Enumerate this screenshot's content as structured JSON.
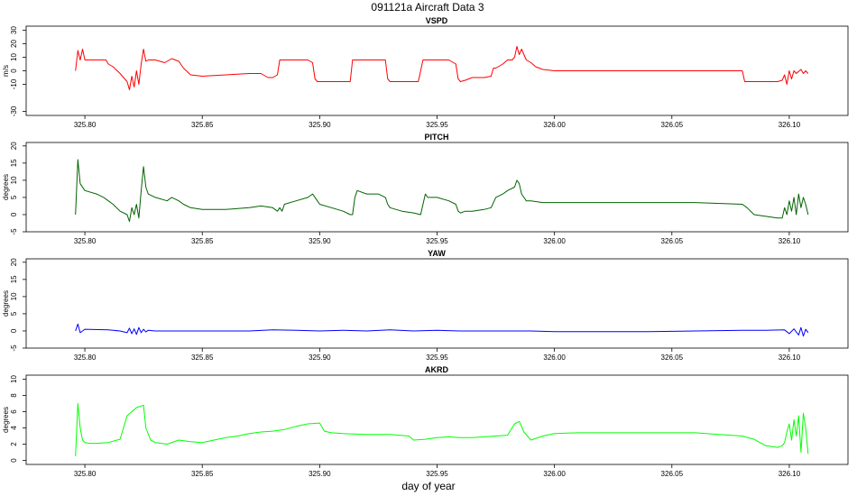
{
  "figure": {
    "title": "091121a   Aircraft Data 3",
    "xlabel": "day of year"
  },
  "chart_data": [
    {
      "type": "line",
      "title": "VSPD",
      "ylabel": "m/s",
      "color": "#ff0000",
      "xlim": [
        325.775,
        326.125
      ],
      "ylim": [
        -33,
        33
      ],
      "yticks": [
        -30,
        -10,
        0,
        10,
        20,
        30
      ],
      "xticks": [
        325.8,
        325.85,
        325.9,
        325.95,
        326.0,
        326.05,
        326.1
      ],
      "x_tick_labels": [
        "325.80",
        "325.85",
        "325.90",
        "325.95",
        "326.00",
        "326.05",
        "326.10"
      ],
      "x": [
        325.796,
        325.797,
        325.798,
        325.799,
        325.8,
        325.803,
        325.807,
        325.809,
        325.81,
        325.812,
        325.815,
        325.818,
        325.819,
        325.82,
        325.821,
        325.822,
        325.823,
        325.824,
        325.825,
        325.826,
        325.827,
        325.83,
        325.834,
        325.837,
        325.84,
        325.842,
        325.845,
        325.85,
        325.86,
        325.87,
        325.875,
        325.878,
        325.88,
        325.882,
        325.883,
        325.884,
        325.885,
        325.89,
        325.895,
        325.897,
        325.898,
        325.899,
        325.9,
        325.91,
        325.913,
        325.914,
        325.915,
        325.916,
        325.92,
        325.925,
        325.928,
        325.929,
        325.93,
        325.931,
        325.935,
        325.94,
        325.942,
        325.944,
        325.945,
        325.946,
        325.95,
        325.955,
        325.958,
        325.959,
        325.96,
        325.962,
        325.965,
        325.97,
        325.973,
        325.974,
        325.975,
        325.978,
        325.98,
        325.982,
        325.983,
        325.984,
        325.985,
        325.986,
        325.988,
        325.99,
        325.992,
        325.995,
        326.0,
        326.02,
        326.04,
        326.06,
        326.08,
        326.081,
        326.082,
        326.09,
        326.095,
        326.097,
        326.098,
        326.099,
        326.1,
        326.101,
        326.102,
        326.103,
        326.105,
        326.106,
        326.107,
        326.108
      ],
      "y": [
        0,
        15,
        8,
        16,
        8,
        8,
        8,
        8,
        5,
        3,
        -2,
        -8,
        -14,
        -4,
        -12,
        0,
        -10,
        5,
        16,
        7,
        8,
        8,
        6,
        9,
        7,
        2,
        -3,
        -4,
        -3,
        -2,
        -2,
        -5,
        -5,
        -3,
        8,
        8,
        8,
        8,
        8,
        6,
        -6,
        -8,
        -8,
        -8,
        -8,
        8,
        8,
        8,
        8,
        8,
        8,
        -6,
        -8,
        -8,
        -8,
        -8,
        -8,
        8,
        8,
        8,
        8,
        8,
        5,
        -6,
        -8,
        -7,
        -5,
        -5,
        -4,
        2,
        2,
        5,
        8,
        8,
        10,
        18,
        12,
        16,
        8,
        6,
        3,
        1,
        0,
        0,
        0,
        0,
        0,
        -8,
        -8,
        -8,
        -8,
        -7,
        -3,
        -10,
        0,
        -6,
        0,
        -2,
        1,
        -2,
        0,
        -2
      ]
    },
    {
      "type": "line",
      "title": "PITCH",
      "ylabel": "degrees",
      "color": "#006400",
      "xlim": [
        325.775,
        326.125
      ],
      "ylim": [
        -5,
        21
      ],
      "yticks": [
        -5,
        0,
        5,
        10,
        15,
        20
      ],
      "xticks": [
        325.8,
        325.85,
        325.9,
        325.95,
        326.0,
        326.05,
        326.1
      ],
      "x_tick_labels": [
        "325.80",
        "325.85",
        "325.90",
        "325.95",
        "326.00",
        "326.05",
        "326.10"
      ],
      "x": [
        325.796,
        325.797,
        325.798,
        325.8,
        325.805,
        325.808,
        325.81,
        325.812,
        325.815,
        325.818,
        325.819,
        325.82,
        325.821,
        325.822,
        325.823,
        325.824,
        325.825,
        325.826,
        325.827,
        325.83,
        325.835,
        325.837,
        325.84,
        325.842,
        325.845,
        325.85,
        325.86,
        325.87,
        325.875,
        325.88,
        325.882,
        325.883,
        325.884,
        325.885,
        325.89,
        325.895,
        325.897,
        325.898,
        325.899,
        325.9,
        325.905,
        325.91,
        325.913,
        325.914,
        325.915,
        325.916,
        325.92,
        325.925,
        325.928,
        325.929,
        325.93,
        325.935,
        325.94,
        325.943,
        325.944,
        325.945,
        325.946,
        325.95,
        325.955,
        325.958,
        325.959,
        325.96,
        325.962,
        325.965,
        325.97,
        325.973,
        325.975,
        325.978,
        325.98,
        325.983,
        325.984,
        325.985,
        325.986,
        325.987,
        325.988,
        325.99,
        325.995,
        326.0,
        326.02,
        326.04,
        326.06,
        326.08,
        326.082,
        326.085,
        326.09,
        326.095,
        326.097,
        326.098,
        326.099,
        326.1,
        326.101,
        326.102,
        326.103,
        326.104,
        326.105,
        326.106,
        326.107,
        326.108
      ],
      "y": [
        0,
        16,
        9,
        7,
        6,
        5,
        4,
        3,
        1,
        0,
        -2,
        2,
        0,
        3,
        -1,
        7,
        14,
        8,
        6,
        5,
        4,
        5,
        4,
        3,
        2,
        1.5,
        1.5,
        2,
        2.5,
        2,
        1,
        2,
        1,
        3,
        4,
        5,
        6,
        5,
        4,
        3,
        2,
        1,
        0,
        0,
        5,
        7,
        6,
        6,
        5,
        3,
        2,
        1,
        0.5,
        0,
        3,
        6,
        5,
        5,
        4,
        3,
        1,
        0.5,
        1,
        1,
        1.5,
        2,
        5,
        6,
        7,
        8,
        10,
        9,
        6,
        5,
        4,
        4,
        3.5,
        3.5,
        3.5,
        3.5,
        3.5,
        3,
        2,
        0,
        -0.5,
        -1,
        -1,
        2,
        0,
        4,
        1,
        5,
        0,
        6,
        2,
        5,
        3,
        0
      ]
    },
    {
      "type": "line",
      "title": "YAW",
      "ylabel": "degrees",
      "color": "#0000ff",
      "xlim": [
        325.775,
        326.125
      ],
      "ylim": [
        -5,
        21
      ],
      "yticks": [
        -5,
        0,
        5,
        10,
        15,
        20
      ],
      "xticks": [
        325.8,
        325.85,
        325.9,
        325.95,
        326.0,
        326.05,
        326.1
      ],
      "x_tick_labels": [
        "325.80",
        "325.85",
        "325.90",
        "325.95",
        "326.00",
        "326.05",
        "326.10"
      ],
      "x": [
        325.796,
        325.797,
        325.798,
        325.8,
        325.81,
        325.815,
        325.818,
        325.819,
        325.82,
        325.821,
        325.822,
        325.823,
        325.824,
        325.825,
        325.826,
        325.827,
        325.83,
        325.85,
        325.87,
        325.88,
        325.89,
        325.9,
        325.91,
        325.92,
        325.93,
        325.94,
        325.95,
        325.96,
        325.97,
        325.98,
        325.99,
        326.0,
        326.02,
        326.04,
        326.06,
        326.08,
        326.09,
        326.098,
        326.1,
        326.102,
        326.104,
        326.105,
        326.106,
        326.107,
        326.108
      ],
      "y": [
        0,
        2,
        -0.5,
        0.5,
        0.3,
        0,
        -0.5,
        0.8,
        -0.8,
        0.6,
        -1,
        1,
        -0.5,
        0.5,
        -0.3,
        0.2,
        0,
        0,
        0,
        0.3,
        0.2,
        0,
        0.2,
        0,
        0.3,
        0,
        0.2,
        0,
        0,
        0,
        0,
        -0.2,
        -0.2,
        -0.2,
        0,
        0.2,
        0.2,
        0.3,
        -0.8,
        0.6,
        -1.2,
        1,
        -1.5,
        0.5,
        -0.5
      ]
    },
    {
      "type": "line",
      "title": "AKRD",
      "ylabel": "degrees",
      "color": "#00ff00",
      "xlim": [
        325.775,
        326.125
      ],
      "ylim": [
        -0.5,
        10.5
      ],
      "yticks": [
        0,
        2,
        4,
        6,
        8,
        10
      ],
      "xticks": [
        325.8,
        325.85,
        325.9,
        325.95,
        326.0,
        326.05,
        326.1
      ],
      "x_tick_labels": [
        "325.80",
        "325.85",
        "325.90",
        "325.95",
        "326.00",
        "326.05",
        "326.10"
      ],
      "x": [
        325.796,
        325.797,
        325.798,
        325.799,
        325.8,
        325.802,
        325.805,
        325.81,
        325.815,
        325.818,
        325.82,
        325.822,
        325.825,
        325.826,
        325.828,
        325.83,
        325.835,
        325.84,
        325.845,
        325.85,
        325.855,
        325.86,
        325.865,
        325.87,
        325.875,
        325.88,
        325.885,
        325.89,
        325.895,
        325.9,
        325.902,
        325.905,
        325.91,
        325.92,
        325.93,
        325.938,
        325.94,
        325.945,
        325.95,
        325.955,
        325.96,
        325.965,
        325.97,
        325.975,
        325.98,
        325.983,
        325.985,
        325.987,
        325.99,
        325.995,
        326.0,
        326.01,
        326.02,
        326.04,
        326.06,
        326.07,
        326.08,
        326.085,
        326.09,
        326.095,
        326.097,
        326.098,
        326.099,
        326.1,
        326.101,
        326.102,
        326.103,
        326.104,
        326.105,
        326.106,
        326.107,
        326.108
      ],
      "y": [
        0.5,
        7,
        4,
        2.5,
        2.2,
        2.1,
        2.1,
        2.2,
        2.6,
        5.5,
        6,
        6.5,
        6.8,
        4,
        2.5,
        2.2,
        2.0,
        2.5,
        2.3,
        2.2,
        2.5,
        2.8,
        3.0,
        3.3,
        3.5,
        3.6,
        3.8,
        4.2,
        4.5,
        4.6,
        3.6,
        3.4,
        3.3,
        3.2,
        3.2,
        3.0,
        2.5,
        2.6,
        2.8,
        2.9,
        2.8,
        2.8,
        2.9,
        3.0,
        3.1,
        4.5,
        4.8,
        3.5,
        2.5,
        3.0,
        3.3,
        3.4,
        3.4,
        3.4,
        3.4,
        3.2,
        3.0,
        2.6,
        1.8,
        1.6,
        1.8,
        2.2,
        3.5,
        4.5,
        2.5,
        5,
        3,
        5.5,
        1,
        5.8,
        4,
        0.8
      ]
    }
  ]
}
